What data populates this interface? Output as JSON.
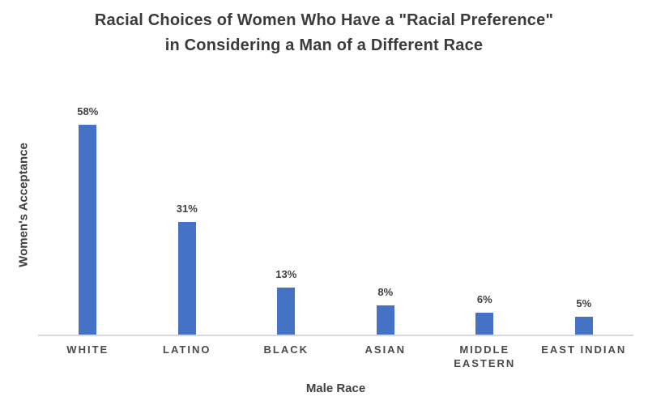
{
  "chart_data": {
    "type": "bar",
    "title_line1": "Racial Choices of Women Who Have a \"Racial Preference\"",
    "title_line2": "in Considering a Man of a Different Race",
    "xlabel": "Male Race",
    "ylabel": "Women's Acceptance",
    "categories": [
      "WHITE",
      "LATINO",
      "BLACK",
      "ASIAN",
      "MIDDLE EASTERN",
      "EAST INDIAN"
    ],
    "tick_labels": [
      "WHITE",
      "LATINO",
      "BLACK",
      "ASIAN",
      "MIDDLE\nEASTERN",
      "EAST INDIAN"
    ],
    "values": [
      58,
      31,
      13,
      8,
      6,
      5
    ],
    "value_labels": [
      "58%",
      "31%",
      "13%",
      "8%",
      "6%",
      "5%"
    ],
    "ylim": [
      0,
      70
    ],
    "grid": false,
    "legend_position": "none",
    "bar_color": "#4472C4",
    "axis_line_color": "#D9D9D9",
    "text_color": "#404040"
  }
}
